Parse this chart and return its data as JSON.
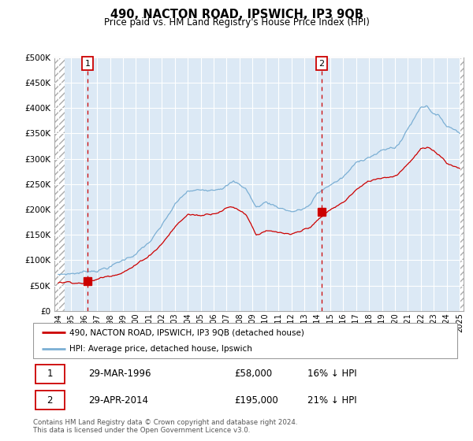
{
  "title": "490, NACTON ROAD, IPSWICH, IP3 9QB",
  "subtitle": "Price paid vs. HM Land Registry's House Price Index (HPI)",
  "property_label": "490, NACTON ROAD, IPSWICH, IP3 9QB (detached house)",
  "hpi_label": "HPI: Average price, detached house, Ipswich",
  "sale1_date": "29-MAR-1996",
  "sale1_price": 58000,
  "sale1_hpi_pct": "16% ↓ HPI",
  "sale2_date": "29-APR-2014",
  "sale2_price": 195000,
  "sale2_hpi_pct": "21% ↓ HPI",
  "footnote": "Contains HM Land Registry data © Crown copyright and database right 2024.\nThis data is licensed under the Open Government Licence v3.0.",
  "ylim": [
    0,
    500000
  ],
  "yticks": [
    0,
    50000,
    100000,
    150000,
    200000,
    250000,
    300000,
    350000,
    400000,
    450000,
    500000
  ],
  "property_color": "#cc0000",
  "hpi_color": "#7bafd4",
  "bg_color": "#dce9f5",
  "grid_color": "#ffffff",
  "vline_color": "#cc0000",
  "sale1_x": 1996.25,
  "sale2_x": 2014.33,
  "xmin": 1993.7,
  "xmax": 2025.3,
  "hatch_left_end": 1994.5,
  "hatch_right_start": 2025.0
}
